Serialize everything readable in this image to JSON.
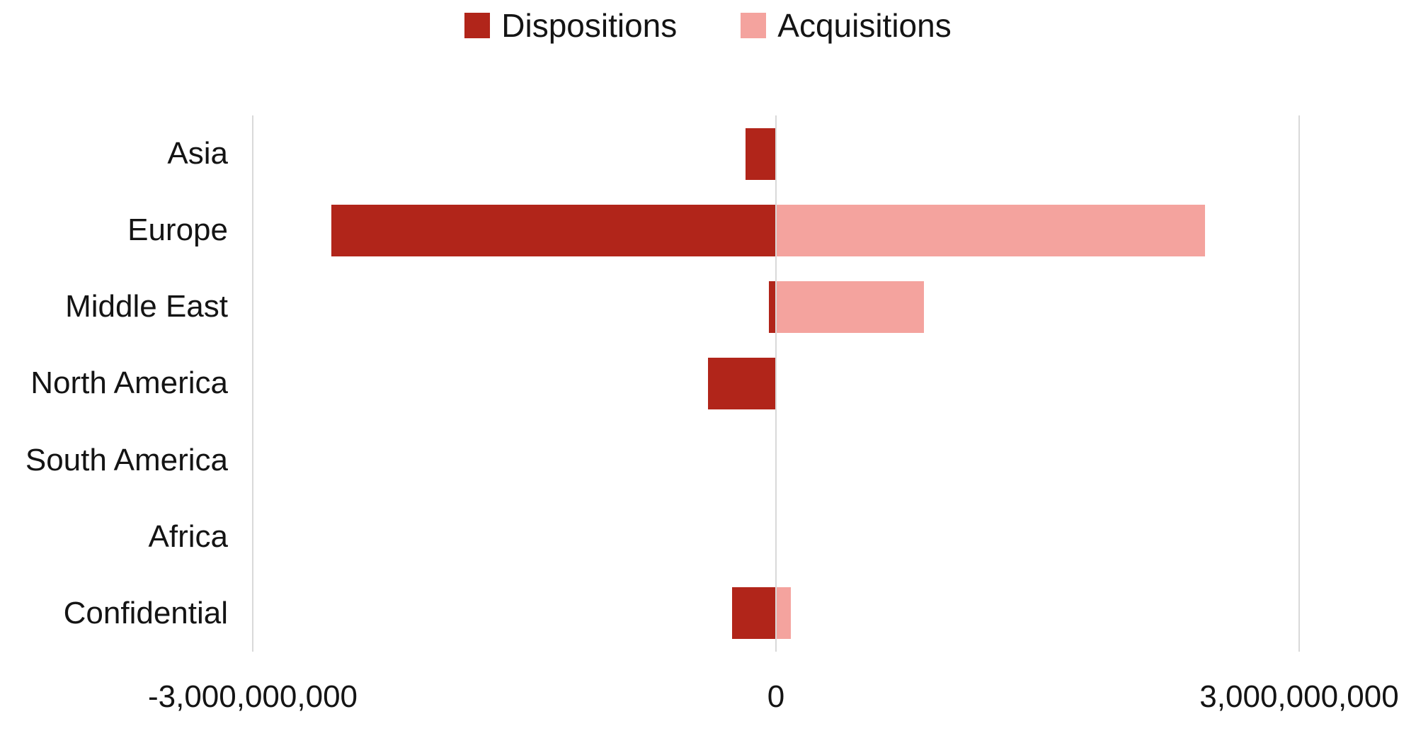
{
  "colors": {
    "background": "#ffffff",
    "text": "#141414",
    "gridline": "#d9d9d9",
    "dispositions": "#b1251a",
    "acquisitions": "#f4a39e"
  },
  "legend": {
    "position": "top-center",
    "items": [
      {
        "label": "Dispositions",
        "color": "#b1251a"
      },
      {
        "label": "Acquisitions",
        "color": "#f4a39e"
      }
    ]
  },
  "chart_data": {
    "type": "bar",
    "orientation": "horizontal",
    "title": "",
    "xlabel": "",
    "ylabel": "",
    "grid": "vertical-gridlines-at-ticks",
    "legend_position": "top-center",
    "categories": [
      "Asia",
      "Europe",
      "Middle East",
      "North America",
      "South America",
      "Africa",
      "Confidential"
    ],
    "series": [
      {
        "name": "Dispositions",
        "color": "#b1251a",
        "values": [
          -175000000,
          -2550000000,
          -40000000,
          -390000000,
          0,
          0,
          -250000000
        ]
      },
      {
        "name": "Acquisitions",
        "color": "#f4a39e",
        "values": [
          0,
          2460000000,
          850000000,
          0,
          0,
          0,
          85000000
        ]
      }
    ],
    "xlim": [
      -3000000000,
      3000000000
    ],
    "x_ticks": [
      {
        "value": -3000000000,
        "label": "-3,000,000,000"
      },
      {
        "value": 0,
        "label": "0"
      },
      {
        "value": 3000000000,
        "label": "3,000,000,000"
      }
    ]
  }
}
